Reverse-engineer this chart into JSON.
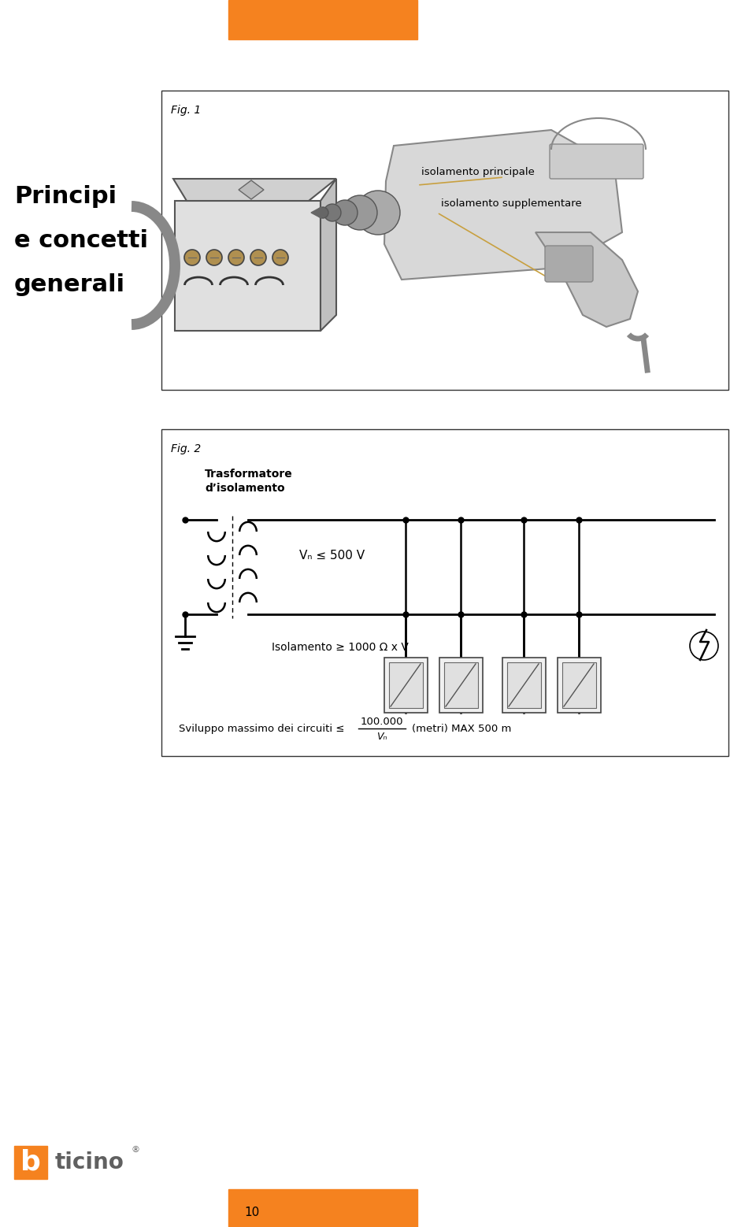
{
  "bg_color": "#ffffff",
  "orange_color": "#F5821F",
  "page_number": "10",
  "left_title_lines": [
    "Principi",
    "e concetti",
    "generali"
  ],
  "fig1_label": "Fig. 1",
  "fig1_annotations": [
    "isolamento principale",
    "isolamento supplementare"
  ],
  "fig2_label": "Fig. 2",
  "fig2_text1": "Trasformatore",
  "fig2_text2": "d’isolamento",
  "fig2_vn_label": "Vₙ ≤ 500 V",
  "fig2_isolation_label": "Isolamento ≥ 1000 Ω x V",
  "fig2_bottom_left": "Sviluppo massimo dei circuiti ≤",
  "fig2_bottom_num": "100.000",
  "fig2_bottom_vn": "Vₙ",
  "fig2_bottom_right": "(metri) MAX 500 m"
}
